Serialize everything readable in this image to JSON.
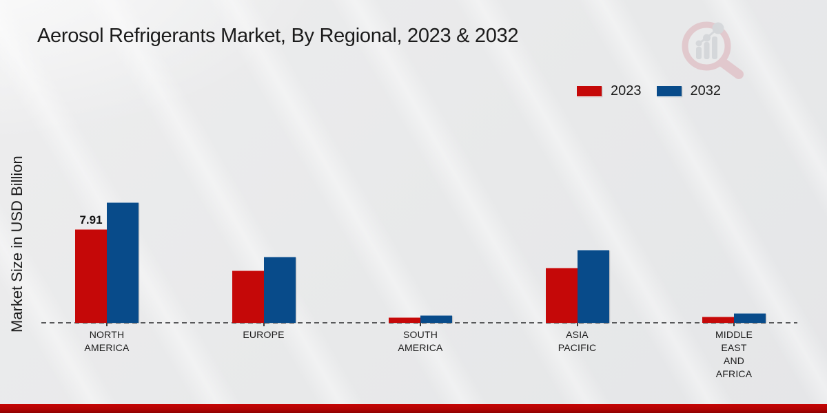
{
  "page": {
    "background_color": "#e8e9ea",
    "accent_bar_color": "#b30303"
  },
  "header": {
    "title": "Aerosol Refrigerants Market, By Regional, 2023 & 2032"
  },
  "chart_data": {
    "type": "bar",
    "title": "Aerosol Refrigerants Market, By Regional, 2023 & 2032",
    "xlabel": "",
    "ylabel": "Market Size in USD Billion",
    "ylim": [
      0,
      10.8
    ],
    "grid": false,
    "baseline_style": "dashed",
    "legend_position": "top-right",
    "categories": [
      "NORTH AMERICA",
      "EUROPE",
      "SOUTH AMERICA",
      "ASIA PACIFIC",
      "MIDDLE EAST AND AFRICA"
    ],
    "category_label_lines": [
      [
        "NORTH",
        "AMERICA"
      ],
      [
        "EUROPE"
      ],
      [
        "SOUTH",
        "AMERICA"
      ],
      [
        "ASIA",
        "PACIFIC"
      ],
      [
        "MIDDLE",
        "EAST",
        "AND",
        "AFRICA"
      ]
    ],
    "series": [
      {
        "name": "2023",
        "color": "#c50808",
        "values": [
          7.91,
          4.42,
          0.46,
          4.65,
          0.52
        ]
      },
      {
        "name": "2032",
        "color": "#084b8a",
        "values": [
          10.18,
          5.6,
          0.63,
          6.18,
          0.8
        ]
      }
    ],
    "annotations": [
      {
        "category_index": 0,
        "series_index": 0,
        "text": "7.91"
      }
    ]
  },
  "watermark": {
    "name": "market-research-magnifier-logo",
    "ring_color": "#dcaab2",
    "glyph_color": "#c3c7cc"
  }
}
